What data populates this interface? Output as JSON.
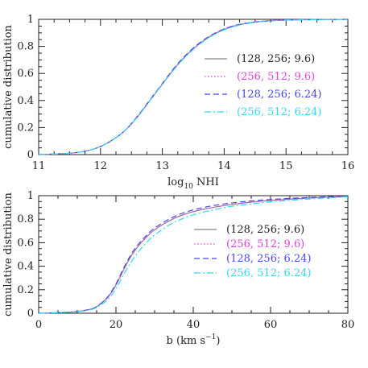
{
  "chart_data": [
    {
      "type": "line",
      "xlabel": "log",
      "xlabel_sub": "10",
      "xlabel_suffix": " NHI",
      "ylabel": "cumulative distribution",
      "xlim": [
        11,
        16
      ],
      "ylim": [
        0,
        1
      ],
      "xticks": [
        11,
        12,
        13,
        14,
        15,
        16
      ],
      "yticks": [
        0,
        0.2,
        0.4,
        0.6,
        0.8,
        1
      ],
      "xtick_labels": [
        "11",
        "12",
        "13",
        "14",
        "15",
        "16"
      ],
      "ytick_labels": [
        "0",
        "0.2",
        "0.4",
        "0.6",
        "0.8",
        "1"
      ],
      "legend_position": "right",
      "grid": false,
      "x": [
        11.0,
        11.5,
        11.8,
        12.0,
        12.2,
        12.4,
        12.6,
        12.8,
        13.0,
        13.2,
        13.4,
        13.6,
        13.8,
        14.0,
        14.2,
        14.4,
        14.6,
        14.8,
        15.0,
        15.5,
        16.0
      ],
      "series": [
        {
          "name": "(128, 256; 9.6)",
          "color": "#888888",
          "dash": "solid",
          "values": [
            0.0,
            0.01,
            0.03,
            0.06,
            0.11,
            0.18,
            0.28,
            0.4,
            0.52,
            0.64,
            0.74,
            0.82,
            0.88,
            0.925,
            0.955,
            0.973,
            0.984,
            0.991,
            0.995,
            0.998,
            1.0
          ]
        },
        {
          "name": "(256, 512; 9.6)",
          "color": "#e040e0",
          "dash": "dotted",
          "values": [
            0.0,
            0.01,
            0.03,
            0.06,
            0.11,
            0.18,
            0.28,
            0.4,
            0.52,
            0.64,
            0.74,
            0.82,
            0.885,
            0.93,
            0.958,
            0.975,
            0.985,
            0.992,
            0.996,
            0.998,
            1.0
          ]
        },
        {
          "name": "(128, 256; 6.24)",
          "color": "#4848e8",
          "dash": "dashed",
          "values": [
            0.0,
            0.01,
            0.03,
            0.06,
            0.11,
            0.18,
            0.285,
            0.405,
            0.525,
            0.645,
            0.745,
            0.825,
            0.885,
            0.928,
            0.957,
            0.974,
            0.985,
            0.991,
            0.995,
            0.998,
            1.0
          ]
        },
        {
          "name": "(256, 512; 6.24)",
          "color": "#30d8f0",
          "dash": "dashdot",
          "values": [
            0.0,
            0.01,
            0.03,
            0.06,
            0.11,
            0.18,
            0.28,
            0.4,
            0.52,
            0.635,
            0.735,
            0.815,
            0.878,
            0.922,
            0.952,
            0.971,
            0.983,
            0.99,
            0.995,
            0.998,
            1.0
          ]
        }
      ]
    },
    {
      "type": "line",
      "xlabel": "b  (km s",
      "xlabel_sup": "−1",
      "xlabel_suffix": ")",
      "ylabel": "cumulative distribution",
      "xlim": [
        0,
        80
      ],
      "ylim": [
        0,
        1
      ],
      "xticks": [
        0,
        20,
        40,
        60,
        80
      ],
      "yticks": [
        0,
        0.2,
        0.4,
        0.6,
        0.8,
        1
      ],
      "xtick_labels": [
        "0",
        "20",
        "40",
        "60",
        "80"
      ],
      "ytick_labels": [
        "0",
        "0.2",
        "0.4",
        "0.6",
        "0.8",
        "1"
      ],
      "legend_position": "right",
      "grid": false,
      "x": [
        0,
        5,
        10,
        14,
        16,
        18,
        20,
        22,
        24,
        26,
        28,
        30,
        34,
        38,
        42,
        46,
        50,
        55,
        60,
        70,
        80
      ],
      "series": [
        {
          "name": "(128, 256; 9.6)",
          "color": "#888888",
          "dash": "solid",
          "values": [
            0.0,
            0.005,
            0.015,
            0.04,
            0.08,
            0.14,
            0.24,
            0.37,
            0.49,
            0.58,
            0.65,
            0.71,
            0.79,
            0.845,
            0.88,
            0.905,
            0.925,
            0.945,
            0.96,
            0.98,
            0.995
          ]
        },
        {
          "name": "(256, 512; 9.6)",
          "color": "#e040e0",
          "dash": "dotted",
          "values": [
            0.0,
            0.005,
            0.015,
            0.04,
            0.08,
            0.14,
            0.24,
            0.37,
            0.49,
            0.58,
            0.65,
            0.71,
            0.79,
            0.845,
            0.88,
            0.905,
            0.925,
            0.945,
            0.96,
            0.98,
            0.995
          ]
        },
        {
          "name": "(128, 256; 6.24)",
          "color": "#4848e8",
          "dash": "dashed",
          "values": [
            0.0,
            0.005,
            0.015,
            0.04,
            0.08,
            0.145,
            0.25,
            0.385,
            0.505,
            0.595,
            0.665,
            0.725,
            0.805,
            0.86,
            0.895,
            0.92,
            0.938,
            0.955,
            0.968,
            0.985,
            0.997
          ]
        },
        {
          "name": "(256, 512; 6.24)",
          "color": "#30d8f0",
          "dash": "dashdot",
          "values": [
            0.0,
            0.005,
            0.013,
            0.035,
            0.07,
            0.12,
            0.21,
            0.33,
            0.44,
            0.53,
            0.605,
            0.665,
            0.755,
            0.815,
            0.855,
            0.885,
            0.91,
            0.93,
            0.948,
            0.972,
            0.99
          ]
        }
      ]
    }
  ]
}
